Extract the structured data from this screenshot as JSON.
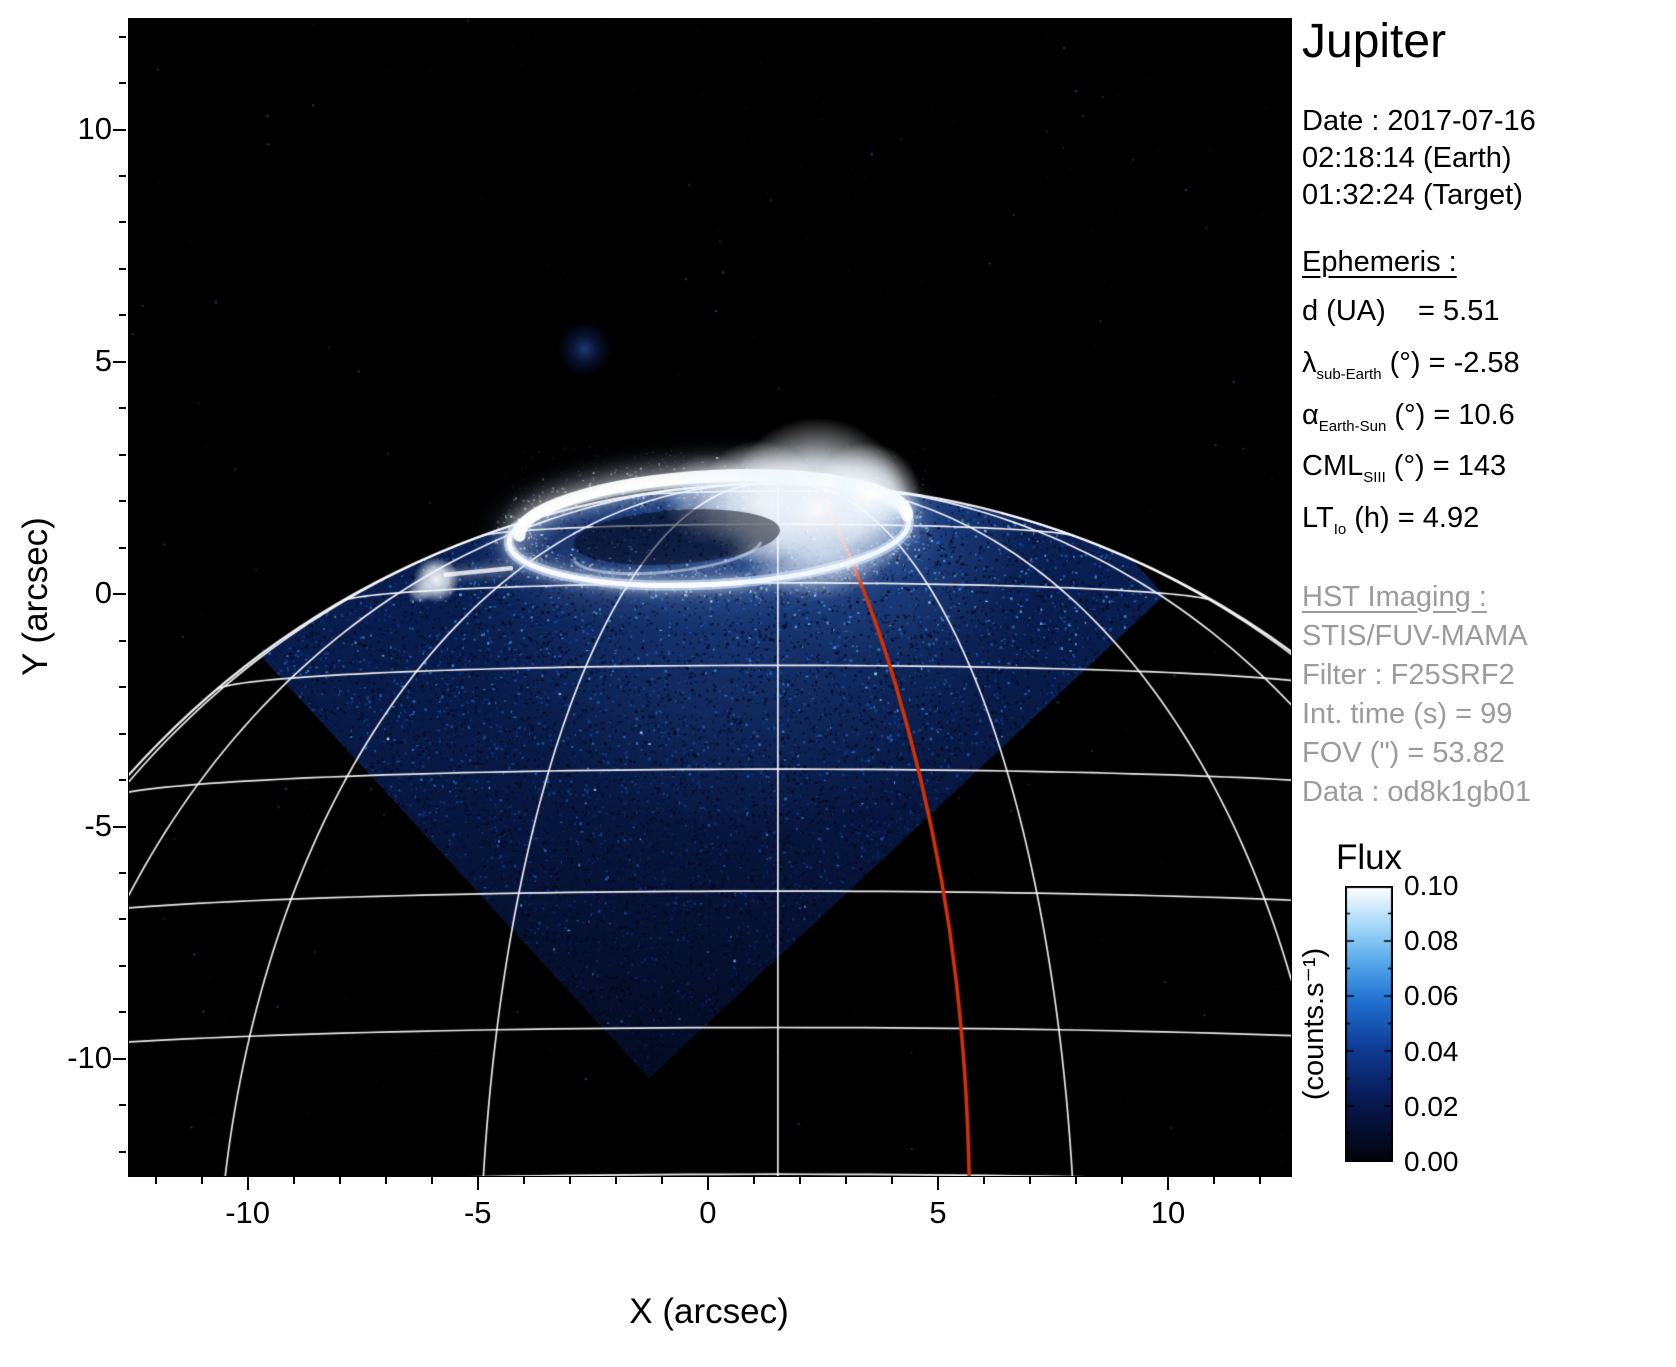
{
  "title": "Jupiter",
  "info": {
    "date": "Date : 2017-07-16",
    "time_earth": "02:18:14 (Earth)",
    "time_target": "01:32:24 (Target)",
    "ephemeris_heading": "Ephemeris :",
    "ephemeris": [
      {
        "pre": "d (UA)",
        "sub": "",
        "post": "    = 5.51"
      },
      {
        "pre": "λ",
        "sub": "sub-Earth",
        "post": " (°) = -2.58"
      },
      {
        "pre": "α",
        "sub": "Earth-Sun",
        "post": " (°) = 10.6"
      },
      {
        "pre": "CML",
        "sub": "SIII",
        "post": " (°) = 143"
      },
      {
        "pre": "LT",
        "sub": "Io",
        "post": " (h) = 4.92"
      }
    ],
    "hst_heading": "HST Imaging :",
    "hst": [
      "STIS/FUV-MAMA",
      "Filter : F25SRF2",
      "Int. time (s) = 99",
      "FOV (\") = 53.82",
      "Data : od8k1gb01"
    ]
  },
  "axes": {
    "xlabel": "X (arcsec)",
    "ylabel": "Y (arcsec)",
    "xticks": [
      "-10",
      "-5",
      "0",
      "5",
      "10"
    ],
    "yticks": [
      "10",
      "5",
      "0",
      "-5",
      "-10"
    ]
  },
  "colorbar": {
    "title": "Flux",
    "unit": "(counts.s⁻¹)",
    "ticks": [
      "0.10",
      "0.08",
      "0.06",
      "0.04",
      "0.02",
      "0.00"
    ]
  },
  "chart_data": {
    "type": "heatmap",
    "title": "Jupiter FUV auroral image (HST/STIS)",
    "xlabel": "X (arcsec)",
    "ylabel": "Y (arcsec)",
    "xlim": [
      -12.6,
      12.65
    ],
    "ylim": [
      -12.5,
      12.4
    ],
    "xtick_values": [
      -10,
      -5,
      0,
      5,
      10
    ],
    "ytick_values": [
      10,
      5,
      0,
      -5,
      -10
    ],
    "minor_tick_step": 1,
    "colorbar": {
      "label": "Flux",
      "unit": "counts/s",
      "range": [
        0.0,
        0.1
      ],
      "tick_values": [
        0.0,
        0.02,
        0.04,
        0.06,
        0.08,
        0.1
      ]
    },
    "planet": {
      "center": [
        1.5,
        -16.6
      ],
      "radius_arcsec": 19.0,
      "sub_earth_lat_deg": -2.58,
      "lat_circle_step_deg": 10,
      "meridian_step_deg": 20
    },
    "detector_fov": {
      "corners": [
        [
          -0.5,
          11.2
        ],
        [
          9.9,
          0.0
        ],
        [
          -1.3,
          -10.4
        ],
        [
          -11.7,
          0.8
        ]
      ]
    },
    "aurora_oval": {
      "center": [
        0.0,
        1.35
      ],
      "rx": 4.35,
      "ry": 1.12,
      "rotation_deg": -3,
      "bright_patch_center": [
        2.35,
        1.85
      ],
      "io_footprint": [
        -5.92,
        0.33
      ]
    },
    "io_track": {
      "color": "#d63000",
      "points": [
        [
          2.35,
          2.42
        ],
        [
          3.05,
          0.9
        ],
        [
          3.75,
          -0.9
        ],
        [
          4.35,
          -2.9
        ],
        [
          4.85,
          -5.0
        ],
        [
          5.25,
          -7.2
        ],
        [
          5.5,
          -9.4
        ],
        [
          5.62,
          -11.2
        ],
        [
          5.66,
          -12.6
        ]
      ]
    },
    "faint_blob": [
      -2.7,
      5.3
    ]
  }
}
